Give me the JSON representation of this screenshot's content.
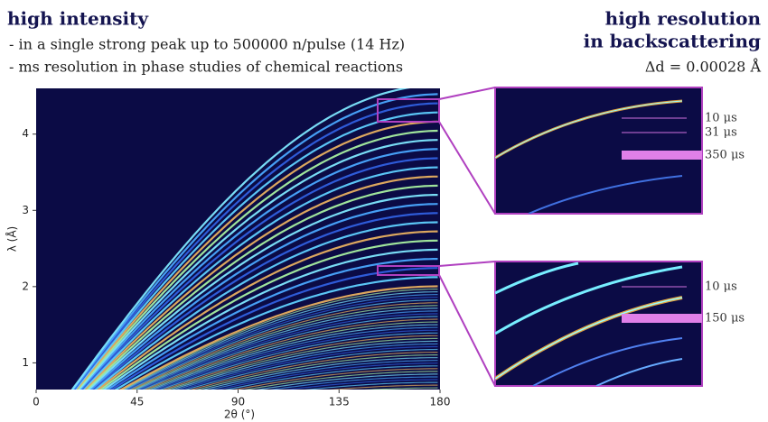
{
  "header": {
    "title": "high intensity",
    "bullets": [
      "- in a single strong peak up to 500000 n/pulse  (14 Hz)",
      "- ms resolution in phase studies of chemical reactions"
    ]
  },
  "right_header": {
    "title_lines": [
      "high resolution",
      "in backscattering"
    ],
    "resolution": "Δd = 0.00028 Å"
  },
  "chart_data": {
    "type": "heatmap",
    "x_label": "2θ (°)",
    "y_label": "λ (Å)",
    "xlim": [
      0,
      180
    ],
    "ylim": [
      0.65,
      4.6
    ],
    "xticks": [
      0,
      45,
      90,
      135,
      180
    ],
    "yticks": [
      1,
      2,
      3,
      4
    ]
  },
  "insets": [
    {
      "labels": [
        "10 μs",
        "31 μs",
        "350 μs"
      ]
    },
    {
      "labels": [
        "10 μs",
        "150 μs"
      ]
    }
  ]
}
